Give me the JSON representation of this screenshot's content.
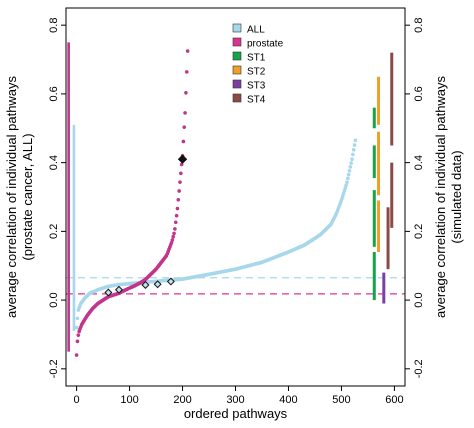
{
  "chart_data": {
    "type": "scatter",
    "title": "",
    "xlabel": "ordered pathways",
    "ylabel_left": "average correlation of individual pathways\n(prostate cancer, ALL)",
    "ylabel_right": "average correlation of individual pathways\n(simulated data)",
    "xlim": [
      -20,
      620
    ],
    "ylim": [
      -0.25,
      0.85
    ],
    "x_ticks": [
      0,
      100,
      200,
      300,
      400,
      500,
      600
    ],
    "x_tick_labels": [
      "0",
      "100",
      "200",
      "300",
      "400",
      "500",
      "600"
    ],
    "y_ticks": [
      -0.2,
      0.0,
      0.2,
      0.4,
      0.6,
      0.8
    ],
    "y_tick_labels": [
      "-0.2",
      "0.0",
      "0.2",
      "0.4",
      "0.6",
      "0.8"
    ],
    "grid": false,
    "legend_position": "top-center",
    "reference_lines": [
      {
        "series": "ALL",
        "y": 0.065,
        "style": "dashed",
        "color": "#a6d7ea"
      },
      {
        "series": "prostate",
        "y": 0.018,
        "style": "dashed",
        "color": "#d9358f"
      }
    ],
    "series": [
      {
        "name": "ALL",
        "color": "#a6d7ea",
        "curve": {
          "x": [
            0,
            3,
            8,
            15,
            25,
            40,
            60,
            80,
            100,
            130,
            160,
            200,
            250,
            300,
            350,
            400,
            430,
            460,
            480,
            490,
            500,
            510,
            520,
            527
          ],
          "y": [
            -0.08,
            -0.03,
            -0.01,
            0.005,
            0.02,
            0.03,
            0.04,
            0.045,
            0.048,
            0.052,
            0.056,
            0.061,
            0.075,
            0.09,
            0.11,
            0.14,
            0.16,
            0.19,
            0.22,
            0.25,
            0.29,
            0.34,
            0.41,
            0.47
          ]
        },
        "side_bar": {
          "x": -5,
          "y_min": -0.09,
          "y_max": 0.51
        }
      },
      {
        "name": "prostate",
        "color": "#c2358c",
        "curve": {
          "x": [
            0,
            2,
            5,
            10,
            20,
            30,
            40,
            50,
            60,
            70,
            80,
            90,
            100,
            110,
            120,
            130,
            140,
            150,
            160,
            170,
            180,
            185,
            190,
            195,
            200,
            205,
            210
          ],
          "y": [
            -0.16,
            -0.11,
            -0.09,
            -0.07,
            -0.045,
            -0.025,
            -0.01,
            0.0,
            0.01,
            0.015,
            0.02,
            0.028,
            0.035,
            0.042,
            0.05,
            0.06,
            0.075,
            0.09,
            0.11,
            0.13,
            0.17,
            0.2,
            0.26,
            0.34,
            0.42,
            0.55,
            0.74
          ]
        },
        "side_bar": {
          "x": -15,
          "y_min": -0.15,
          "y_max": 0.75
        }
      },
      {
        "name": "ST1",
        "color": "#16a34a",
        "bars": [
          {
            "x": 562,
            "y_min": 0.0,
            "y_max": 0.14
          },
          {
            "x": 562,
            "y_min": 0.155,
            "y_max": 0.32
          },
          {
            "x": 562,
            "y_min": 0.355,
            "y_max": 0.45
          },
          {
            "x": 562,
            "y_min": 0.5,
            "y_max": 0.56
          }
        ]
      },
      {
        "name": "ST2",
        "color": "#f0a028",
        "bars": [
          {
            "x": 570,
            "y_min": 0.14,
            "y_max": 0.29
          },
          {
            "x": 570,
            "y_min": 0.305,
            "y_max": 0.49
          },
          {
            "x": 570,
            "y_min": 0.51,
            "y_max": 0.65
          }
        ]
      },
      {
        "name": "ST3",
        "color": "#7c3fa0",
        "bars": [
          {
            "x": 580,
            "y_min": -0.01,
            "y_max": 0.08
          }
        ]
      },
      {
        "name": "ST4",
        "color": "#8b4a45",
        "bars": [
          {
            "x": 595,
            "y_min": 0.21,
            "y_max": 0.4
          },
          {
            "x": 595,
            "y_min": 0.45,
            "y_max": 0.72
          },
          {
            "x": 588,
            "y_min": 0.09,
            "y_max": 0.27
          }
        ]
      }
    ],
    "highlighted_points": [
      {
        "x": 60,
        "y": 0.022,
        "marker": "open-diamond"
      },
      {
        "x": 80,
        "y": 0.03,
        "marker": "open-diamond"
      },
      {
        "x": 130,
        "y": 0.044,
        "marker": "open-diamond"
      },
      {
        "x": 153,
        "y": 0.046,
        "marker": "open-diamond"
      },
      {
        "x": 178,
        "y": 0.054,
        "marker": "open-diamond"
      },
      {
        "x": 200,
        "y": 0.41,
        "marker": "filled-diamond"
      }
    ],
    "legend": [
      {
        "label": "ALL",
        "color": "#a6d7ea"
      },
      {
        "label": "prostate",
        "color": "#d9358f"
      },
      {
        "label": "ST1",
        "color": "#16a34a"
      },
      {
        "label": "ST2",
        "color": "#f0a028"
      },
      {
        "label": "ST3",
        "color": "#7c3fa0"
      },
      {
        "label": "ST4",
        "color": "#8b4a45"
      }
    ]
  }
}
